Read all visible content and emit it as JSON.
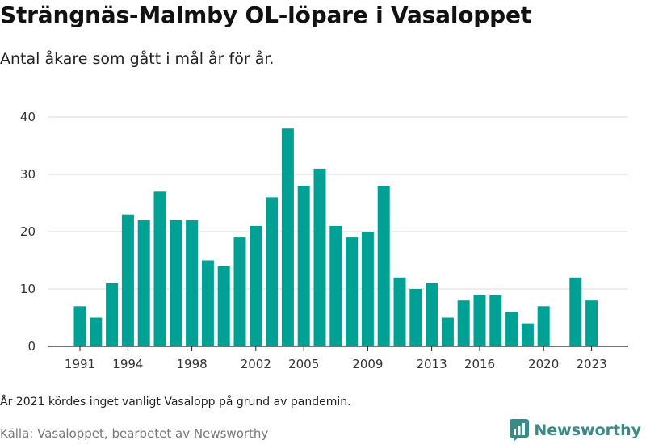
{
  "title": "Strängnäs-Malmby OL-löpare i Vasaloppet",
  "subtitle": "Antal åkare som gått i mål år för år.",
  "note": "År 2021 kördes inget vanligt Vasalopp på grund av pandemin.",
  "source": "Källa: Vasaloppet, bearbetet av Newsworthy",
  "logo": {
    "text": "Newsworthy",
    "color": "#3a8a86",
    "icon": "bar-chart-logo-icon"
  },
  "chart_data": {
    "type": "bar",
    "color": "#00a195",
    "grid": true,
    "ylim": [
      0,
      40
    ],
    "yticks": [
      0,
      10,
      20,
      30,
      40
    ],
    "xticks": [
      1991,
      1994,
      1998,
      2002,
      2005,
      2009,
      2013,
      2016,
      2020,
      2023
    ],
    "x": [
      1991,
      1992,
      1993,
      1994,
      1995,
      1996,
      1997,
      1998,
      1999,
      2000,
      2001,
      2002,
      2003,
      2004,
      2005,
      2006,
      2007,
      2008,
      2009,
      2010,
      2011,
      2012,
      2013,
      2014,
      2015,
      2016,
      2017,
      2018,
      2019,
      2020,
      2021,
      2022,
      2023
    ],
    "values": [
      7,
      5,
      11,
      23,
      22,
      27,
      22,
      22,
      15,
      14,
      19,
      21,
      26,
      38,
      28,
      31,
      21,
      19,
      20,
      28,
      12,
      10,
      11,
      5,
      8,
      9,
      9,
      6,
      4,
      7,
      null,
      12,
      8
    ],
    "title": "",
    "xlabel": "",
    "ylabel": ""
  }
}
